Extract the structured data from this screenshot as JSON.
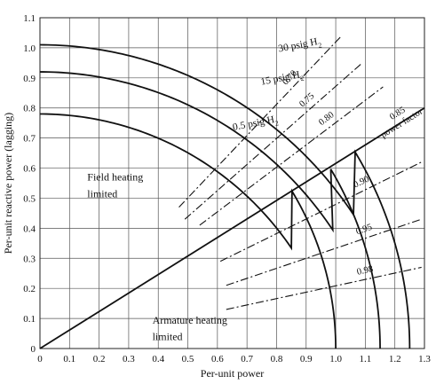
{
  "chart_data": {
    "type": "line",
    "title": "",
    "xlabel": "Per-unit power",
    "ylabel": "Per-unit reactive power (lagging)",
    "xlim": [
      0,
      1.3
    ],
    "ylim": [
      0,
      1.1
    ],
    "grid": true,
    "x_ticks": [
      "0",
      "0.1",
      "0.2",
      "0.3",
      "0.4",
      "0.5",
      "0.6",
      "0.7",
      "0.8",
      "0.9",
      "1.0",
      "1.1",
      "1.2",
      "1.3"
    ],
    "y_ticks": [
      "0",
      "0.1",
      "0.2",
      "0.3",
      "0.4",
      "0.5",
      "0.6",
      "0.7",
      "0.8",
      "0.9",
      "1.0",
      "1.1"
    ],
    "capability_curves": [
      {
        "label": "30 psig H",
        "subscript": "2",
        "q_max": 1.01,
        "kink": [
          1.06,
          0.66
        ],
        "p_max": 1.25,
        "label_at": [
          0.88,
          1.0
        ]
      },
      {
        "label": "15 psig H",
        "subscript": "2",
        "q_max": 0.92,
        "kink": [
          0.99,
          0.61
        ],
        "p_max": 1.15,
        "label_at": [
          0.82,
          0.89
        ]
      },
      {
        "label": "0.5 psig H",
        "subscript": "2",
        "q_max": 0.78,
        "kink": [
          0.85,
          0.53
        ],
        "p_max": 1.0,
        "label_at": [
          0.73,
          0.74
        ]
      }
    ],
    "rated_pf_line": {
      "points": [
        [
          0,
          0
        ],
        [
          1.3,
          0.8
        ]
      ],
      "label": "0.85",
      "sublabel": "power factor"
    },
    "pf_lines": [
      {
        "label": "0.70",
        "points": [
          [
            0.47,
            0.47
          ],
          [
            1.02,
            1.04
          ]
        ]
      },
      {
        "label": "0.75",
        "points": [
          [
            0.49,
            0.43
          ],
          [
            1.09,
            0.95
          ]
        ]
      },
      {
        "label": "0.80",
        "points": [
          [
            0.54,
            0.41
          ],
          [
            1.16,
            0.87
          ]
        ]
      },
      {
        "label": "0.90",
        "points": [
          [
            0.61,
            0.29
          ],
          [
            1.29,
            0.62
          ]
        ]
      },
      {
        "label": "0.95",
        "points": [
          [
            0.63,
            0.21
          ],
          [
            1.29,
            0.43
          ]
        ]
      },
      {
        "label": "0.98",
        "points": [
          [
            0.63,
            0.13
          ],
          [
            1.29,
            0.27
          ]
        ]
      }
    ],
    "annotations": [
      {
        "text": "Field heating",
        "at": [
          0.7,
          0.36
        ]
      },
      {
        "text": "limited",
        "at": [
          0.7,
          0.31
        ]
      },
      {
        "text": "Armature heating",
        "at": [
          0.47,
          0.05
        ]
      },
      {
        "text": "limited",
        "at": [
          0.47,
          0.0
        ]
      }
    ]
  }
}
